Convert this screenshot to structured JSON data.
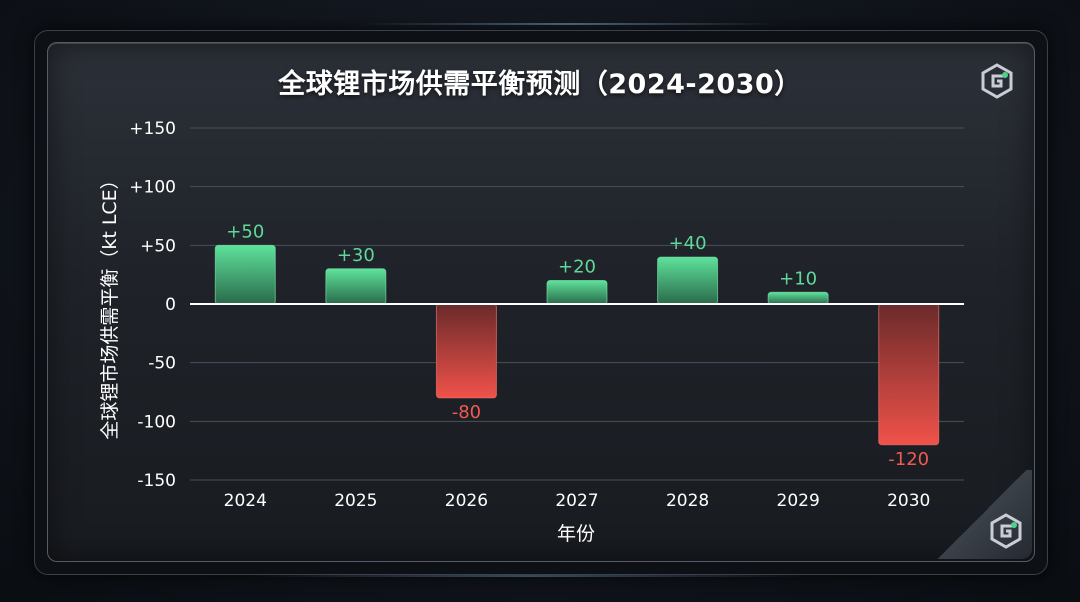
{
  "chart_data": {
    "type": "bar",
    "title": "全球锂市场供需平衡预测（2024-2030）",
    "xlabel": "年份",
    "ylabel": "全球锂市场供需平衡（kt LCE）",
    "categories": [
      "2024",
      "2025",
      "2026",
      "2027",
      "2028",
      "2029",
      "2030"
    ],
    "values": [
      50,
      30,
      -80,
      20,
      40,
      10,
      -120
    ],
    "value_labels": [
      "+50",
      "+30",
      "-80",
      "+20",
      "+40",
      "+10",
      "-120"
    ],
    "ylim": [
      -150,
      150
    ],
    "yticks": [
      150,
      100,
      50,
      0,
      -50,
      -100,
      -150
    ],
    "ytick_labels": [
      "+150",
      "+100",
      "+50",
      "0",
      "-50",
      "-100",
      "-150"
    ],
    "grid": true,
    "legend": "none",
    "colors": {
      "positive": "#4cc985",
      "negative": "#e64a44"
    }
  }
}
